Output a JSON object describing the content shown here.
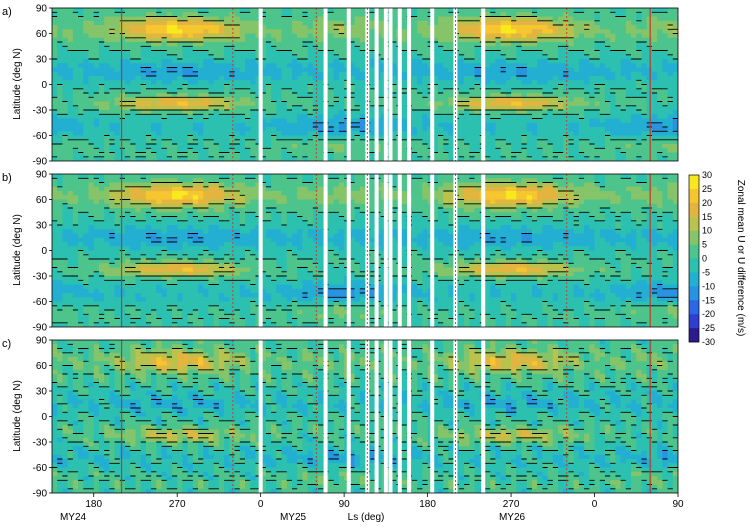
{
  "figure": {
    "colorbar_label": "Zonal mean U or U difference (m/s)",
    "x_axis_label": "Ls (deg)",
    "y_axis_label": "Latitude (deg N)",
    "mars_years": [
      "MY24",
      "MY25",
      "MY26"
    ]
  },
  "colors": {
    "scale": [
      "#2b1b8f",
      "#2f3fd0",
      "#2d67e8",
      "#2893e0",
      "#22afd2",
      "#2cc0b0",
      "#4cc48c",
      "#86c46a",
      "#b8c24c",
      "#e4b440",
      "#f5c630",
      "#f8e81e"
    ],
    "contour": "#000000",
    "gap": "#ffffff",
    "marker_solid": "#c0392b",
    "marker_dotted": "#c0392b"
  },
  "chart_data": [
    {
      "type": "heatmap",
      "panel_label": "a)",
      "xlabel": "",
      "ylabel": "Latitude (deg N)",
      "ylim": [
        -90,
        90
      ],
      "yticks": [
        "90",
        "60",
        "30",
        "0",
        "-30",
        "-60",
        "-90"
      ],
      "clim": [
        -30,
        30
      ],
      "description_values": "Zonal mean zonal wind U (m/s); westerly jets ~20-30 m/s near 60N at Ls 180-360 and ~20 m/s near 20S at Ls 240-300, easterlies ~-10 m/s near 20-40S"
    },
    {
      "type": "heatmap",
      "panel_label": "b)",
      "xlabel": "",
      "ylabel": "Latitude (deg N)",
      "ylim": [
        -90,
        90
      ],
      "yticks": [
        "90",
        "60",
        "30",
        "0",
        "-30",
        "-60",
        "-90"
      ],
      "clim": [
        -30,
        30
      ]
    },
    {
      "type": "heatmap",
      "panel_label": "c)",
      "xlabel": "Ls (deg)",
      "ylabel": "Latitude (deg N)",
      "ylim": [
        -90,
        90
      ],
      "yticks": [
        "90",
        "60",
        "30",
        "0",
        "-30",
        "-60",
        "-90"
      ],
      "xticks": [
        "180",
        "270",
        "0",
        "90",
        "180",
        "270",
        "0",
        "90",
        "180",
        "270",
        "0",
        "90"
      ],
      "clim": [
        -30,
        30
      ]
    },
    {
      "type": "colorbar",
      "ticks": [
        "30",
        "25",
        "20",
        "15",
        "10",
        "5",
        "0",
        "-5",
        "-10",
        "-15",
        "-20",
        "-25",
        "-30"
      ],
      "range": [
        -30,
        30
      ],
      "label": "Zonal mean U or U difference (m/s)"
    }
  ]
}
